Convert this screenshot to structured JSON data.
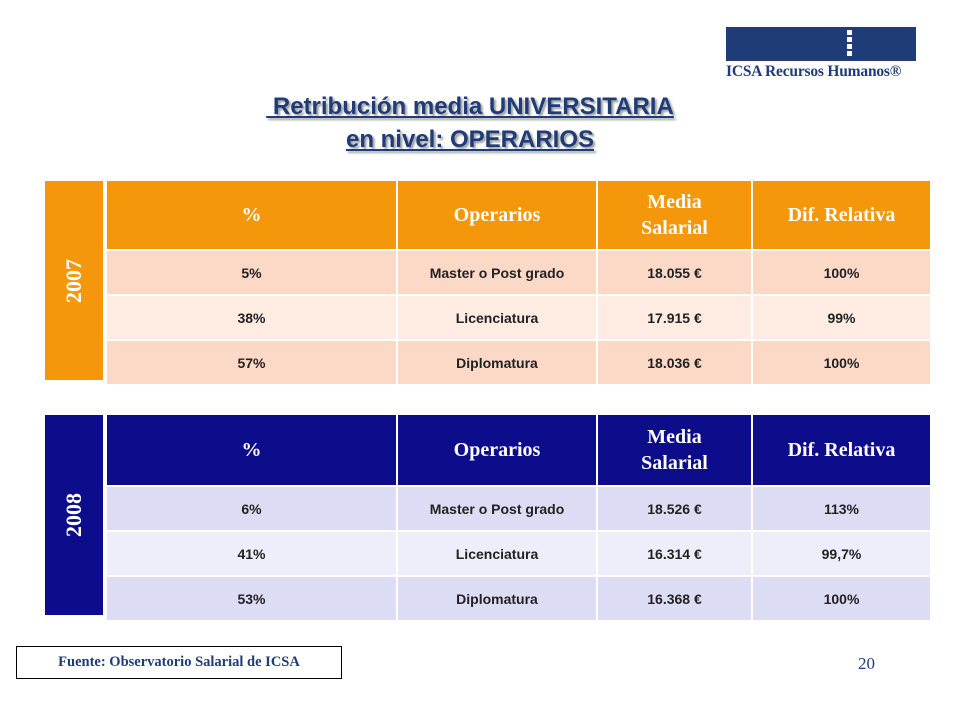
{
  "logo": {
    "text": "ICSA Recursos Humanos®",
    "color": "#1f3c78"
  },
  "title": {
    "line1": " Retribución media UNIVERSITARIA",
    "line2": "en nivel: OPERARIOS"
  },
  "headers": [
    "%",
    "Operarios",
    "Media Salarial",
    "Dif. Relativa"
  ],
  "table_2007": {
    "year": "2007",
    "header_color": "#f5970a",
    "rows": [
      [
        "5%",
        "Master o Post grado",
        "18.055 €",
        "100%"
      ],
      [
        "38%",
        "Licenciatura",
        "17.915 €",
        "99%"
      ],
      [
        "57%",
        "Diplomatura",
        "18.036 €",
        "100%"
      ]
    ]
  },
  "table_2008": {
    "year": "2008",
    "header_color": "#0d0d8c",
    "rows": [
      [
        "6%",
        "Master o Post grado",
        "18.526 €",
        "113%"
      ],
      [
        "41%",
        "Licenciatura",
        "16.314 €",
        "99,7%"
      ],
      [
        "53%",
        "Diplomatura",
        "16.368 €",
        "100%"
      ]
    ]
  },
  "footer": {
    "source": "Fuente: Observatorio Salarial de ICSA",
    "page_number": "20"
  }
}
